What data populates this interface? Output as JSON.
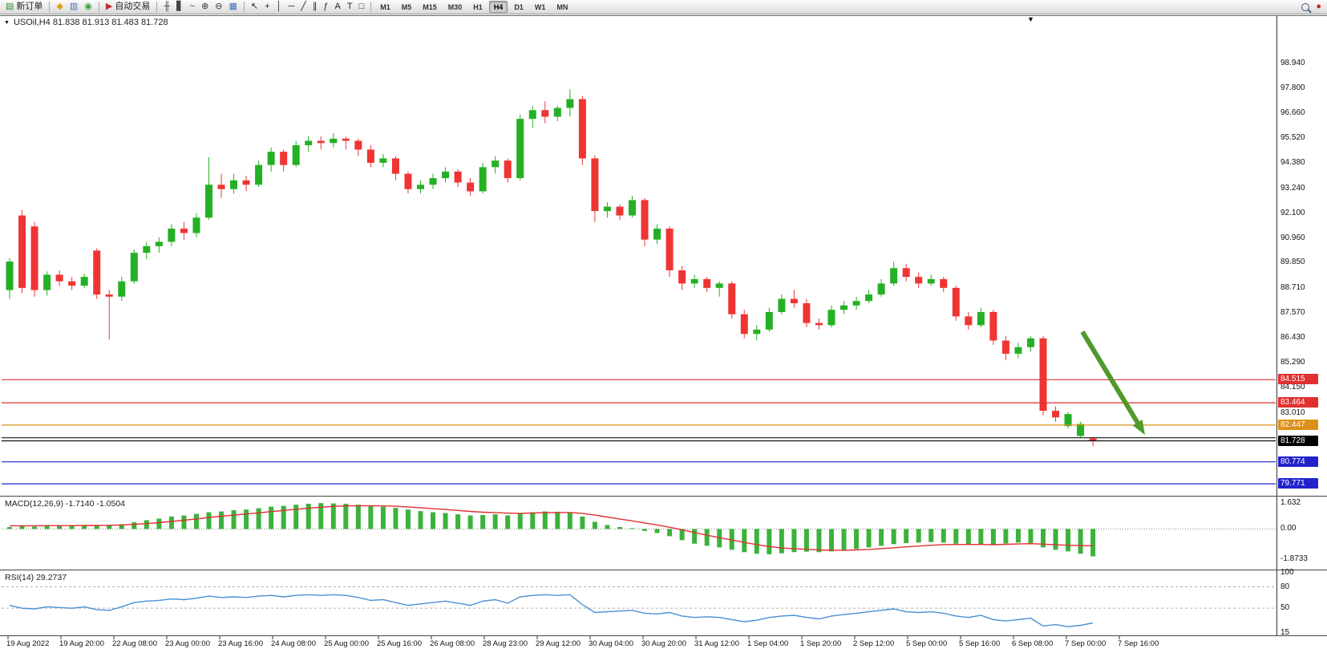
{
  "toolbar": {
    "groups": [
      {
        "name": "order",
        "buttons": [
          {
            "name": "new-order-button",
            "icon": "new-order-icon",
            "glyph": "▤",
            "color": "#2f8f2f",
            "label": "新订单"
          }
        ]
      },
      {
        "name": "panels",
        "buttons": [
          {
            "name": "favorites-button",
            "icon": "favorites-icon",
            "glyph": "◆",
            "color": "#dfa020"
          },
          {
            "name": "market-watch-button",
            "icon": "market-watch-icon",
            "glyph": "▥",
            "color": "#3b6fb5"
          },
          {
            "name": "navigator-button",
            "icon": "navigator-icon",
            "glyph": "◉",
            "color": "#3aa13a"
          }
        ]
      },
      {
        "name": "autotrade",
        "buttons": [
          {
            "name": "autotrade-button",
            "icon": "autotrade-icon",
            "glyph": "▶",
            "color": "#c23030",
            "label": "自动交易"
          }
        ]
      },
      {
        "name": "chart-tools",
        "buttons": [
          {
            "name": "bar-chart-button",
            "icon": "bar-chart-icon",
            "glyph": "╫",
            "color": "#444"
          },
          {
            "name": "candlestick-button",
            "icon": "candlestick-icon",
            "glyph": "▋",
            "color": "#444"
          },
          {
            "name": "line-chart-button",
            "icon": "line-chart-icon",
            "glyph": "~",
            "color": "#444"
          },
          {
            "name": "zoom-in-button",
            "icon": "zoom-in-icon",
            "glyph": "⊕",
            "color": "#333"
          },
          {
            "name": "zoom-out-button",
            "icon": "zoom-out-icon",
            "glyph": "⊖",
            "color": "#333"
          },
          {
            "name": "tile-windows-button",
            "icon": "tile-windows-icon",
            "glyph": "▦",
            "color": "#3b6fb5"
          }
        ]
      },
      {
        "name": "draw-tools",
        "buttons": [
          {
            "name": "cursor-button",
            "icon": "cursor-icon",
            "glyph": "↖",
            "color": "#222"
          },
          {
            "name": "crosshair-button",
            "icon": "crosshair-icon",
            "glyph": "+",
            "color": "#222"
          },
          {
            "name": "vertical-line-button",
            "icon": "vertical-line-icon",
            "glyph": "│",
            "color": "#222"
          },
          {
            "name": "horizontal-line-button",
            "icon": "horizontal-line-icon",
            "glyph": "─",
            "color": "#222"
          },
          {
            "name": "trendline-button",
            "icon": "trendline-icon",
            "glyph": "╱",
            "color": "#222"
          },
          {
            "name": "channel-button",
            "icon": "channel-icon",
            "glyph": "∥",
            "color": "#222"
          },
          {
            "name": "fibonacci-button",
            "icon": "fibonacci-icon",
            "glyph": "ƒ",
            "color": "#222"
          },
          {
            "name": "text-button",
            "icon": "text-icon",
            "glyph": "A",
            "color": "#222"
          },
          {
            "name": "label-button",
            "icon": "label-icon",
            "glyph": "T",
            "color": "#222"
          },
          {
            "name": "shapes-button",
            "icon": "shapes-icon",
            "glyph": "□",
            "color": "#222"
          }
        ]
      },
      {
        "name": "timeframes",
        "type": "timeframes",
        "items": [
          "M1",
          "M5",
          "M15",
          "M30",
          "H1",
          "H4",
          "D1",
          "W1",
          "MN"
        ],
        "active": "H4"
      }
    ],
    "right_buttons": [
      {
        "name": "search-button",
        "icon": "search-icon",
        "css": true
      },
      {
        "name": "status-button",
        "icon": "status-icon",
        "glyph": "●",
        "color": "#cc2222"
      }
    ]
  },
  "chart": {
    "title": "USOil,H4  81.838 81.913 81.483 81.728",
    "symbol": "USOil",
    "timeframe": "H4",
    "colors": {
      "background": "#ffffff",
      "up": "#24b024",
      "down": "#ef3434",
      "axis_text": "#111111",
      "grid": "#999999"
    }
  },
  "macd": {
    "label": "MACD(12,26,9) -1.7140 -1.0504"
  },
  "rsi": {
    "label": "RSI(14) 29.2737"
  },
  "annotations": {
    "arrow": {
      "from_price": 86.7,
      "to_price": 82.0,
      "color": "#4f9a2b"
    }
  },
  "chart_data": [
    {
      "type": "candlestick",
      "title": "USOil H4",
      "symbol": "USOil",
      "timeframe": "H4",
      "ohlc_last": {
        "open": 81.838,
        "high": 81.913,
        "low": 81.483,
        "close": 81.728
      },
      "ylim": [
        79.3,
        101.05
      ],
      "y_tick_labels": [
        "98.940",
        "97.800",
        "96.660",
        "95.520",
        "94.380",
        "93.240",
        "92.100",
        "90.960",
        "89.850",
        "88.710",
        "87.570",
        "86.430",
        "85.290",
        "84.150",
        "83.010"
      ],
      "x_labels": [
        "19 Aug 2022",
        "19 Aug 20:00",
        "22 Aug 08:00",
        "23 Aug 00:00",
        "23 Aug 16:00",
        "24 Aug 08:00",
        "25 Aug 00:00",
        "25 Aug 16:00",
        "26 Aug 08:00",
        "28 Aug 23:00",
        "29 Aug 12:00",
        "30 Aug 04:00",
        "30 Aug 20:00",
        "31 Aug 12:00",
        "1 Sep 04:00",
        "1 Sep 20:00",
        "2 Sep 12:00",
        "5 Sep 00:00",
        "5 Sep 16:00",
        "6 Sep 08:00",
        "7 Sep 00:00",
        "7 Sep 16:00"
      ],
      "ohlc": [
        [
          88.6,
          90.05,
          88.2,
          89.9
        ],
        [
          92.0,
          92.25,
          88.45,
          88.7
        ],
        [
          91.5,
          91.7,
          88.3,
          88.6
        ],
        [
          88.6,
          89.45,
          88.35,
          89.3
        ],
        [
          89.3,
          89.5,
          88.8,
          89.0
        ],
        [
          89.0,
          89.2,
          88.6,
          88.8
        ],
        [
          88.8,
          89.35,
          88.7,
          89.2
        ],
        [
          90.4,
          90.5,
          88.2,
          88.4
        ],
        [
          88.4,
          88.6,
          86.35,
          88.3
        ],
        [
          88.3,
          89.2,
          88.1,
          89.0
        ],
        [
          89.0,
          90.45,
          88.9,
          90.3
        ],
        [
          90.3,
          90.8,
          90.0,
          90.6
        ],
        [
          90.6,
          91.0,
          90.3,
          90.8
        ],
        [
          90.8,
          91.6,
          90.6,
          91.4
        ],
        [
          91.4,
          91.7,
          90.9,
          91.2
        ],
        [
          91.2,
          92.1,
          91.0,
          91.9
        ],
        [
          91.9,
          94.65,
          91.8,
          93.4
        ],
        [
          93.4,
          93.9,
          92.8,
          93.2
        ],
        [
          93.2,
          93.9,
          93.0,
          93.6
        ],
        [
          93.6,
          93.8,
          93.1,
          93.4
        ],
        [
          93.4,
          94.5,
          93.3,
          94.3
        ],
        [
          94.3,
          95.1,
          94.0,
          94.9
        ],
        [
          94.9,
          95.0,
          94.0,
          94.3
        ],
        [
          94.3,
          95.4,
          94.2,
          95.2
        ],
        [
          95.2,
          95.6,
          94.9,
          95.4
        ],
        [
          95.4,
          95.6,
          95.0,
          95.3
        ],
        [
          95.3,
          95.75,
          95.1,
          95.5
        ],
        [
          95.5,
          95.6,
          95.0,
          95.4
        ],
        [
          95.4,
          95.5,
          94.7,
          95.0
        ],
        [
          95.0,
          95.2,
          94.2,
          94.4
        ],
        [
          94.4,
          94.8,
          94.2,
          94.6
        ],
        [
          94.6,
          94.7,
          93.6,
          93.9
        ],
        [
          93.9,
          94.0,
          93.0,
          93.2
        ],
        [
          93.2,
          93.6,
          93.0,
          93.4
        ],
        [
          93.4,
          93.9,
          93.2,
          93.7
        ],
        [
          93.7,
          94.2,
          93.5,
          94.0
        ],
        [
          94.0,
          94.1,
          93.3,
          93.5
        ],
        [
          93.5,
          93.7,
          92.9,
          93.1
        ],
        [
          93.1,
          94.4,
          93.0,
          94.2
        ],
        [
          94.2,
          94.7,
          93.9,
          94.5
        ],
        [
          94.5,
          94.6,
          93.5,
          93.7
        ],
        [
          93.7,
          96.6,
          93.6,
          96.4
        ],
        [
          96.4,
          97.0,
          96.0,
          96.8
        ],
        [
          96.8,
          97.2,
          96.2,
          96.5
        ],
        [
          96.5,
          97.0,
          96.3,
          96.9
        ],
        [
          96.9,
          97.75,
          96.5,
          97.3
        ],
        [
          97.3,
          97.45,
          94.3,
          94.6
        ],
        [
          94.6,
          94.75,
          91.7,
          92.2
        ],
        [
          92.2,
          92.6,
          91.9,
          92.4
        ],
        [
          92.4,
          92.5,
          91.8,
          92.0
        ],
        [
          92.0,
          92.9,
          91.9,
          92.7
        ],
        [
          92.7,
          92.8,
          90.6,
          90.9
        ],
        [
          90.9,
          91.6,
          90.7,
          91.4
        ],
        [
          91.4,
          91.5,
          89.2,
          89.5
        ],
        [
          89.5,
          89.7,
          88.6,
          88.9
        ],
        [
          88.9,
          89.3,
          88.7,
          89.1
        ],
        [
          89.1,
          89.2,
          88.5,
          88.7
        ],
        [
          88.7,
          89.0,
          88.3,
          88.9
        ],
        [
          88.9,
          89.0,
          87.3,
          87.5
        ],
        [
          87.5,
          87.7,
          86.4,
          86.6
        ],
        [
          86.6,
          87.0,
          86.3,
          86.8
        ],
        [
          86.8,
          87.8,
          86.7,
          87.6
        ],
        [
          87.6,
          88.4,
          87.5,
          88.2
        ],
        [
          88.2,
          88.6,
          87.8,
          88.0
        ],
        [
          88.0,
          88.2,
          86.9,
          87.1
        ],
        [
          87.1,
          87.3,
          86.8,
          87.0
        ],
        [
          87.0,
          87.9,
          86.9,
          87.7
        ],
        [
          87.7,
          88.1,
          87.5,
          87.9
        ],
        [
          87.9,
          88.3,
          87.7,
          88.1
        ],
        [
          88.1,
          88.6,
          88.0,
          88.4
        ],
        [
          88.4,
          89.1,
          88.3,
          88.9
        ],
        [
          88.9,
          89.9,
          88.8,
          89.6
        ],
        [
          89.6,
          89.8,
          89.0,
          89.2
        ],
        [
          89.2,
          89.4,
          88.7,
          88.9
        ],
        [
          88.9,
          89.3,
          88.8,
          89.1
        ],
        [
          89.1,
          89.2,
          88.5,
          88.7
        ],
        [
          88.7,
          88.8,
          87.2,
          87.4
        ],
        [
          87.4,
          87.6,
          86.8,
          87.0
        ],
        [
          87.0,
          87.8,
          86.9,
          87.6
        ],
        [
          87.6,
          87.7,
          86.1,
          86.3
        ],
        [
          86.3,
          86.5,
          85.4,
          85.7
        ],
        [
          85.7,
          86.2,
          85.5,
          86.0
        ],
        [
          86.0,
          86.5,
          85.8,
          86.4
        ],
        [
          86.4,
          86.5,
          82.9,
          83.1
        ],
        [
          83.1,
          83.3,
          82.6,
          82.8
        ],
        [
          82.4,
          83.05,
          82.3,
          82.95
        ],
        [
          81.95,
          82.6,
          81.85,
          82.5
        ],
        [
          81.838,
          81.913,
          81.483,
          81.728
        ]
      ],
      "horizontal_lines": [
        {
          "name": "resistance-line-1",
          "value": 84.515,
          "color": "#e03030",
          "label": "84.515"
        },
        {
          "name": "resistance-line-2",
          "value": 83.464,
          "color": "#e03030",
          "label": "83.464"
        },
        {
          "name": "pivot-line",
          "value": 82.447,
          "color": "#dd9018",
          "label": "82.447"
        },
        {
          "name": "support-line",
          "value": 81.87,
          "color": "#141414",
          "label": null
        },
        {
          "name": "current-price-line",
          "value": 81.728,
          "color": "#000000",
          "label": "81.728",
          "role": "current-price"
        },
        {
          "name": "support-line-1",
          "value": 80.774,
          "color": "#2222cc",
          "label": "80.774"
        },
        {
          "name": "support-line-2",
          "value": 79.771,
          "color": "#2222cc",
          "label": "79.771"
        }
      ]
    },
    {
      "type": "bar",
      "name": "MACD(12,26,9)",
      "label": "MACD(12,26,9) -1.7140 -1.0504",
      "last_macd": -1.714,
      "last_signal": -1.0504,
      "ylim": [
        -2.49,
        1.98
      ],
      "y_tick_labels": [
        "1.632",
        "0.00",
        "-1.8733"
      ],
      "colors": {
        "histogram": "#3cb23c",
        "signal": "#e03030"
      },
      "values": [
        0.12,
        0.18,
        0.15,
        0.2,
        0.22,
        0.2,
        0.24,
        0.22,
        0.25,
        0.3,
        0.42,
        0.55,
        0.65,
        0.78,
        0.85,
        0.95,
        1.05,
        1.1,
        1.18,
        1.22,
        1.3,
        1.4,
        1.45,
        1.52,
        1.58,
        1.62,
        1.6,
        1.58,
        1.52,
        1.45,
        1.4,
        1.32,
        1.22,
        1.12,
        1.05,
        1.0,
        0.92,
        0.85,
        0.88,
        0.92,
        0.85,
        0.95,
        1.05,
        1.1,
        1.08,
        1.02,
        0.78,
        0.45,
        0.25,
        0.12,
        0.05,
        -0.12,
        -0.25,
        -0.45,
        -0.7,
        -0.92,
        -1.05,
        -1.15,
        -1.3,
        -1.45,
        -1.55,
        -1.58,
        -1.52,
        -1.45,
        -1.42,
        -1.45,
        -1.4,
        -1.32,
        -1.25,
        -1.15,
        -1.05,
        -0.95,
        -0.88,
        -0.85,
        -0.82,
        -0.85,
        -0.92,
        -1.0,
        -0.95,
        -1.02,
        -0.9,
        -0.85,
        -0.88,
        -1.15,
        -1.3,
        -1.4,
        -1.55,
        -1.714
      ],
      "signal": [
        0.2,
        0.2,
        0.2,
        0.21,
        0.21,
        0.21,
        0.22,
        0.22,
        0.23,
        0.25,
        0.29,
        0.34,
        0.4,
        0.48,
        0.55,
        0.63,
        0.72,
        0.8,
        0.87,
        0.94,
        1.01,
        1.09,
        1.16,
        1.23,
        1.3,
        1.36,
        1.41,
        1.45,
        1.46,
        1.46,
        1.45,
        1.42,
        1.38,
        1.33,
        1.27,
        1.22,
        1.16,
        1.1,
        1.05,
        1.03,
        0.99,
        0.98,
        1.0,
        1.02,
        1.03,
        1.03,
        0.98,
        0.87,
        0.75,
        0.62,
        0.51,
        0.38,
        0.25,
        0.11,
        -0.05,
        -0.22,
        -0.39,
        -0.54,
        -0.69,
        -0.84,
        -0.98,
        -1.1,
        -1.19,
        -1.24,
        -1.27,
        -1.31,
        -1.33,
        -1.33,
        -1.31,
        -1.28,
        -1.23,
        -1.18,
        -1.12,
        -1.07,
        -1.02,
        -0.98,
        -0.97,
        -0.97,
        -0.97,
        -0.98,
        -0.96,
        -0.94,
        -0.92,
        -0.95,
        -0.99,
        -1.02,
        -1.04,
        -1.0504
      ]
    },
    {
      "type": "line",
      "name": "RSI(14)",
      "label": "RSI(14) 29.2737",
      "last": 29.2737,
      "ylim": [
        13,
        102
      ],
      "levels": [
        80,
        50
      ],
      "y_tick_labels": [
        "100",
        "80",
        "50",
        "15"
      ],
      "color": "#4a90d4",
      "values": [
        54,
        50,
        49,
        52,
        51,
        50,
        52,
        48,
        47,
        52,
        58,
        60,
        61,
        63,
        62,
        64,
        67,
        65,
        66,
        65,
        67,
        68,
        66,
        68,
        69,
        68,
        69,
        68,
        65,
        61,
        62,
        58,
        54,
        56,
        58,
        60,
        57,
        54,
        60,
        62,
        57,
        66,
        68,
        69,
        68,
        69,
        55,
        44,
        45,
        46,
        47,
        43,
        42,
        44,
        39,
        37,
        38,
        37,
        34,
        31,
        33,
        37,
        39,
        40,
        37,
        35,
        39,
        41,
        43,
        45,
        47,
        49,
        45,
        44,
        45,
        43,
        39,
        37,
        40,
        34,
        32,
        34,
        36,
        25,
        27,
        24,
        26,
        29.27
      ]
    }
  ]
}
